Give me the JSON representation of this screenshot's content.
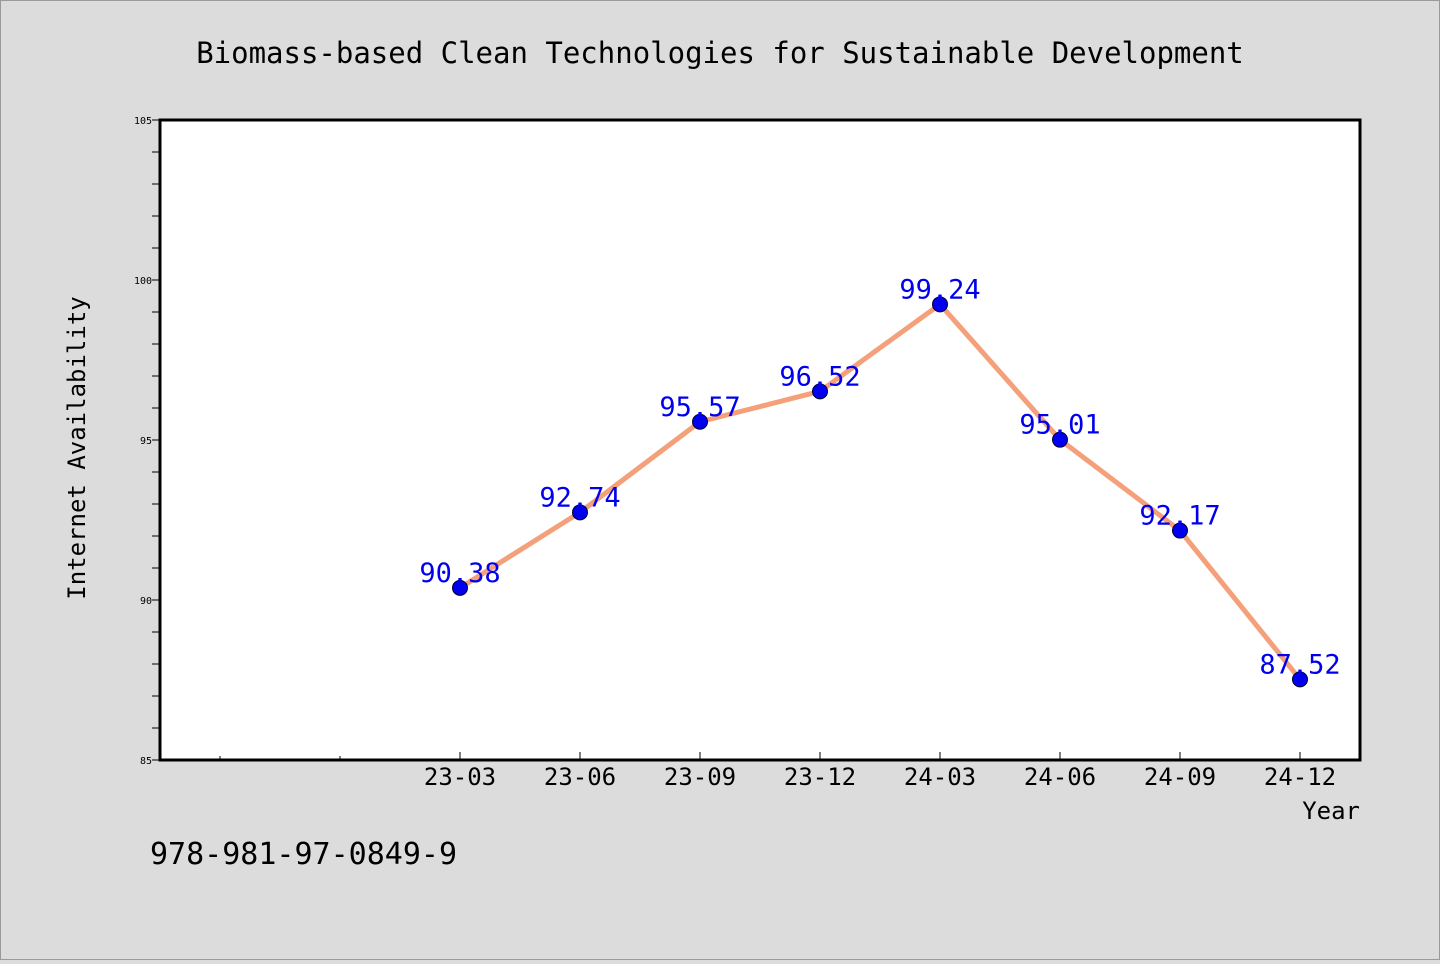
{
  "chart_data": {
    "type": "line",
    "title": "Biomass-based Clean Technologies for Sustainable Development",
    "xlabel": "Year",
    "ylabel": "Internet Availability",
    "footer": "978-981-97-0849-9",
    "categories": [
      "23-03",
      "23-06",
      "23-09",
      "23-12",
      "24-03",
      "24-06",
      "24-09",
      "24-12"
    ],
    "series": [
      {
        "values": [
          90.38,
          92.74,
          95.57,
          96.52,
          99.24,
          95.01,
          92.17,
          87.52
        ]
      }
    ],
    "ylim": [
      85,
      105
    ],
    "yticks": [
      85,
      90,
      95,
      100,
      105
    ],
    "grid": false,
    "colors": {
      "line": "#f4a07a",
      "marker": "#0000ee",
      "data_label": "#0000ee",
      "background": "#dcdcdc",
      "plot_area": "#ffffff"
    }
  }
}
